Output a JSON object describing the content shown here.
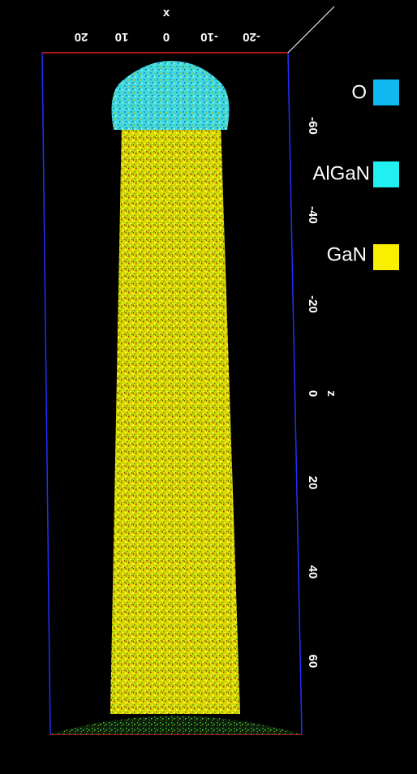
{
  "x_axis": {
    "label": "x",
    "ticks": [
      "20",
      "10",
      "0",
      "-10",
      "-20"
    ]
  },
  "z_axis": {
    "label": "z",
    "ticks": [
      "-60",
      "-40",
      "-20",
      "0",
      "20",
      "40",
      "60"
    ]
  },
  "legend": [
    {
      "label": "O"
    },
    {
      "label": "AlGaN"
    },
    {
      "label": "GaN"
    }
  ]
}
